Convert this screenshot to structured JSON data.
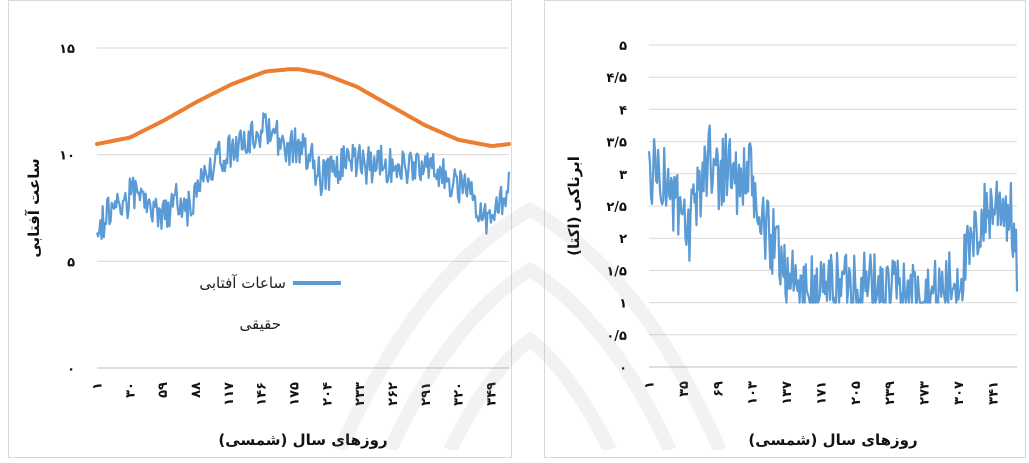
{
  "chart_data": [
    {
      "type": "line",
      "xlabel": "روزهای سال (شمسی)",
      "ylabel": "ساعت آفتابی",
      "ylim": [
        0,
        15
      ],
      "yticks": [
        "۰",
        "۵",
        "۱۰",
        "۱۵"
      ],
      "x_tick_labels": [
        "۱",
        "۳۰",
        "۵۹",
        "۸۸",
        "۱۱۷",
        "۱۴۶",
        "۱۷۵",
        "۲۰۴",
        "۲۳۳",
        "۲۶۲",
        "۲۹۱",
        "۳۲۰",
        "۳۴۹"
      ],
      "x_tick_values": [
        1,
        30,
        59,
        88,
        117,
        146,
        175,
        204,
        233,
        262,
        291,
        320,
        349
      ],
      "xlim": [
        1,
        365
      ],
      "grid": true,
      "legend_position": "inside-bottom-center",
      "series": [
        {
          "name": "ساعات آفتابی",
          "color": "#ED7D31",
          "x": [
            1,
            30,
            60,
            90,
            120,
            150,
            170,
            180,
            200,
            230,
            260,
            290,
            320,
            350,
            365
          ],
          "values": [
            10.5,
            10.8,
            11.6,
            12.5,
            13.3,
            13.9,
            14.0,
            14.0,
            13.8,
            13.2,
            12.3,
            11.4,
            10.7,
            10.4,
            10.5
          ]
        },
        {
          "name": "حقیقی",
          "color": "#5B9BD5",
          "x": [
            1,
            10,
            20,
            30,
            40,
            50,
            60,
            70,
            80,
            90,
            100,
            110,
            120,
            130,
            140,
            150,
            160,
            170,
            180,
            190,
            200,
            210,
            220,
            230,
            240,
            250,
            260,
            270,
            280,
            290,
            300,
            310,
            320,
            330,
            340,
            350,
            360,
            365
          ],
          "values": [
            6.5,
            7.2,
            7.6,
            8.0,
            8.2,
            7.4,
            7.0,
            7.8,
            7.3,
            8.3,
            9.2,
            9.8,
            10.3,
            10.6,
            11.0,
            11.3,
            10.8,
            10.4,
            10.4,
            9.8,
            8.8,
            9.5,
            9.6,
            9.8,
            9.5,
            9.6,
            9.6,
            9.5,
            9.3,
            9.3,
            9.2,
            8.8,
            8.5,
            8.0,
            7.2,
            7.1,
            8.0,
            9.0
          ],
          "noise": 0.9
        }
      ]
    },
    {
      "type": "line",
      "xlabel": "روزهای سال (شمسی)",
      "ylabel": "ابرناکی (اکتا)",
      "ylim": [
        0,
        5
      ],
      "yticks": [
        "۰",
        "۰/۵",
        "۱",
        "۱/۵",
        "۲",
        "۲/۵",
        "۳",
        "۳/۵",
        "۴",
        "۴/۵",
        "۵"
      ],
      "x_tick_labels": [
        "۱",
        "۳۵",
        "۶۹",
        "۱۰۳",
        "۱۳۷",
        "۱۷۱",
        "۲۰۵",
        "۲۳۹",
        "۲۷۳",
        "۳۰۷",
        "۳۴۱"
      ],
      "x_tick_values": [
        1,
        35,
        69,
        103,
        137,
        171,
        205,
        239,
        273,
        307,
        341
      ],
      "xlim": [
        1,
        365
      ],
      "grid": true,
      "series": [
        {
          "color": "#5B9BD5",
          "x": [
            1,
            10,
            20,
            30,
            40,
            50,
            60,
            70,
            80,
            90,
            100,
            110,
            120,
            130,
            140,
            150,
            160,
            170,
            180,
            190,
            200,
            210,
            220,
            230,
            240,
            250,
            260,
            270,
            280,
            290,
            300,
            310,
            320,
            330,
            340,
            350,
            360,
            365
          ],
          "values": [
            3.0,
            3.1,
            2.8,
            2.4,
            2.0,
            2.7,
            3.3,
            3.0,
            3.2,
            2.8,
            3.0,
            2.3,
            2.0,
            1.8,
            1.4,
            1.2,
            1.2,
            1.2,
            1.3,
            1.3,
            1.4,
            1.3,
            1.3,
            1.2,
            1.2,
            1.2,
            1.2,
            1.1,
            1.1,
            1.2,
            1.3,
            1.5,
            1.8,
            2.3,
            2.5,
            2.6,
            2.3,
            1.5
          ],
          "noise": 0.55,
          "floor": 1
        }
      ]
    }
  ]
}
